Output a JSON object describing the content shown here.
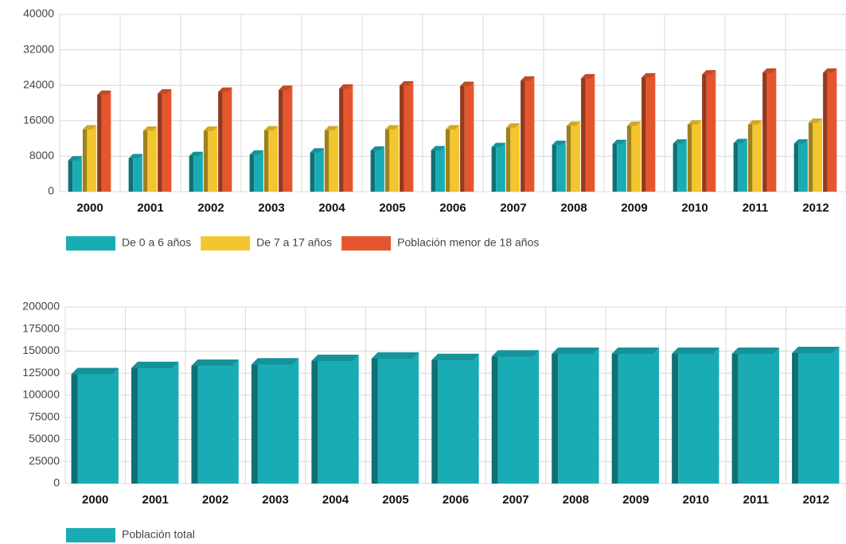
{
  "chart_data": [
    {
      "type": "bar",
      "categories": [
        "2000",
        "2001",
        "2002",
        "2003",
        "2004",
        "2005",
        "2006",
        "2007",
        "2008",
        "2009",
        "2010",
        "2011",
        "2012"
      ],
      "series": [
        {
          "name": "De 0 a 6 años",
          "color": "#1aacb4",
          "values": [
            8000,
            8500,
            9000,
            9300,
            9800,
            10200,
            10300,
            11000,
            11500,
            11700,
            11800,
            11900,
            11800
          ]
        },
        {
          "name": "De 7 a 17 años",
          "color": "#f3c630",
          "values": [
            15000,
            14700,
            14700,
            14800,
            14800,
            15000,
            15000,
            15400,
            15800,
            15800,
            16100,
            16100,
            16500
          ]
        },
        {
          "name": "Población menor de 18 años",
          "color": "#e4572e",
          "values": [
            22800,
            23100,
            23500,
            23900,
            24200,
            24900,
            24800,
            26000,
            26500,
            26700,
            27400,
            27800,
            27800
          ]
        }
      ],
      "ylim": [
        0,
        40000
      ],
      "yticks": [
        0,
        8000,
        16000,
        24000,
        32000,
        40000
      ],
      "grid": true,
      "legend": "bottom"
    },
    {
      "type": "bar",
      "categories": [
        "2000",
        "2001",
        "2002",
        "2003",
        "2004",
        "2005",
        "2006",
        "2007",
        "2008",
        "2009",
        "2010",
        "2011",
        "2012"
      ],
      "series": [
        {
          "name": "Población total",
          "color": "#1aacb4",
          "values": [
            131000,
            138000,
            140500,
            142000,
            146000,
            148600,
            147000,
            151000,
            154000,
            154000,
            154000,
            154000,
            155000
          ]
        }
      ],
      "ylim": [
        0,
        200000
      ],
      "yticks": [
        0,
        25000,
        50000,
        75000,
        100000,
        125000,
        150000,
        175000,
        200000
      ],
      "grid": true,
      "legend": "bottom"
    }
  ]
}
